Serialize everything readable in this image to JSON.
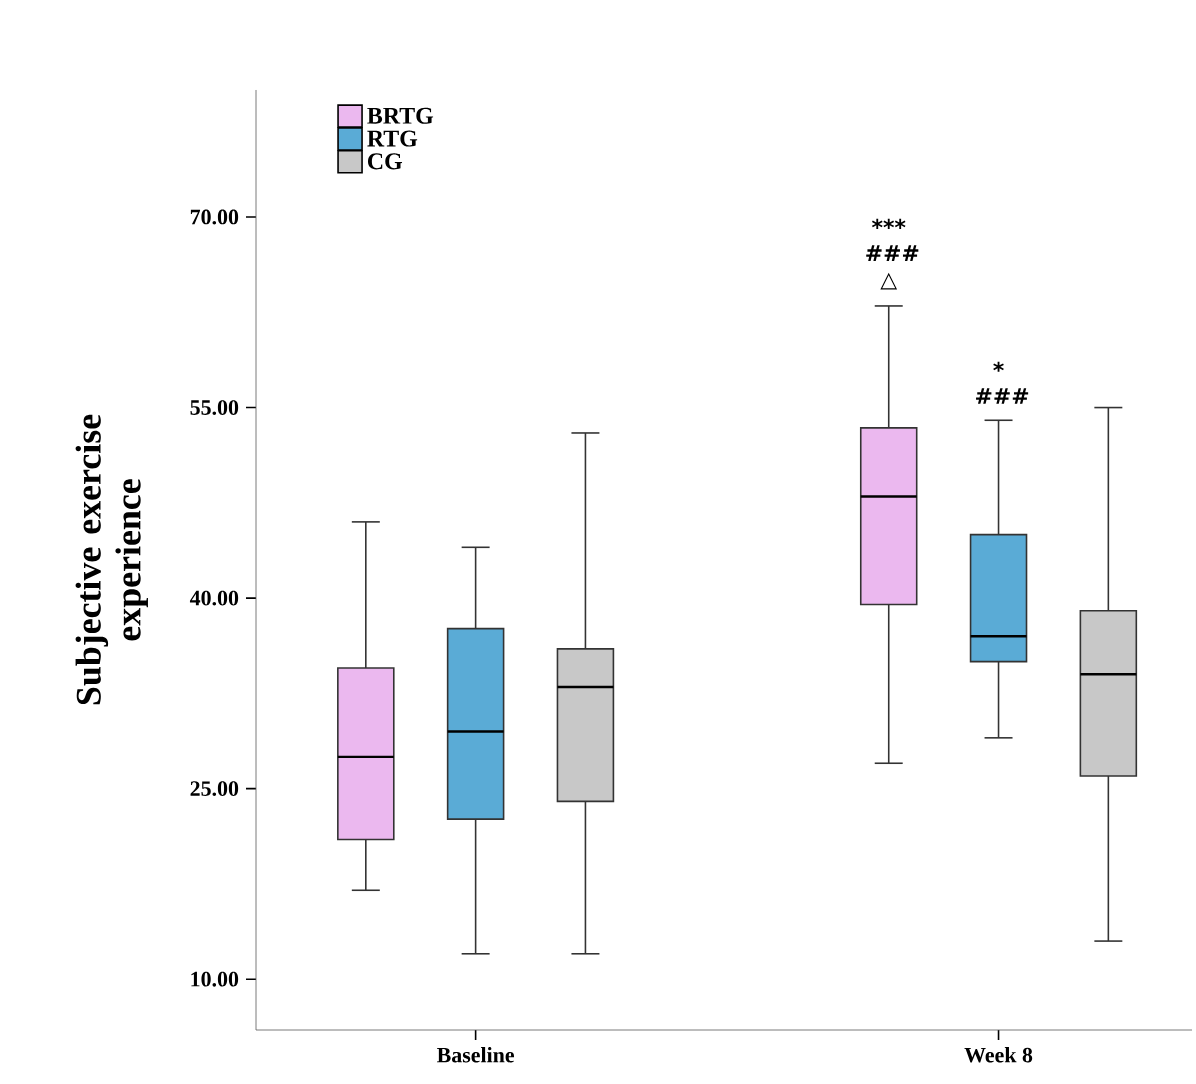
{
  "chart_data": {
    "type": "box",
    "ylabel": "Subjective exercise experience",
    "categories": [
      "Baseline",
      "Week 8"
    ],
    "ylim": [
      6,
      80
    ],
    "yticks": [
      {
        "value": 10,
        "label": "10.00"
      },
      {
        "value": 25,
        "label": "25.00"
      },
      {
        "value": 40,
        "label": "40.00"
      },
      {
        "value": 55,
        "label": "55.00"
      },
      {
        "value": 70,
        "label": "70.00"
      }
    ],
    "legend": "top left",
    "grid": false,
    "series": [
      {
        "name": "BRTG",
        "color": "#ebb8ef",
        "boxes": [
          {
            "low": 17,
            "q1": 21,
            "median": 27.5,
            "q3": 34.5,
            "high": 46
          },
          {
            "low": 27,
            "q1": 39.5,
            "median": 48,
            "q3": 53.4,
            "high": 63
          }
        ]
      },
      {
        "name": "RTG",
        "color": "#5aabd6",
        "boxes": [
          {
            "low": 12,
            "q1": 22.6,
            "median": 29.5,
            "q3": 37.6,
            "high": 44
          },
          {
            "low": 29,
            "q1": 35,
            "median": 37,
            "q3": 45,
            "high": 54
          }
        ]
      },
      {
        "name": "CG",
        "color": "#c8c8c8",
        "boxes": [
          {
            "low": 12,
            "q1": 24,
            "median": 33,
            "q3": 36,
            "high": 53
          },
          {
            "low": 13,
            "q1": 26,
            "median": 34,
            "q3": 39,
            "high": 55
          }
        ]
      }
    ],
    "annotations": [
      "*** ### △",
      "* ###"
    ]
  }
}
